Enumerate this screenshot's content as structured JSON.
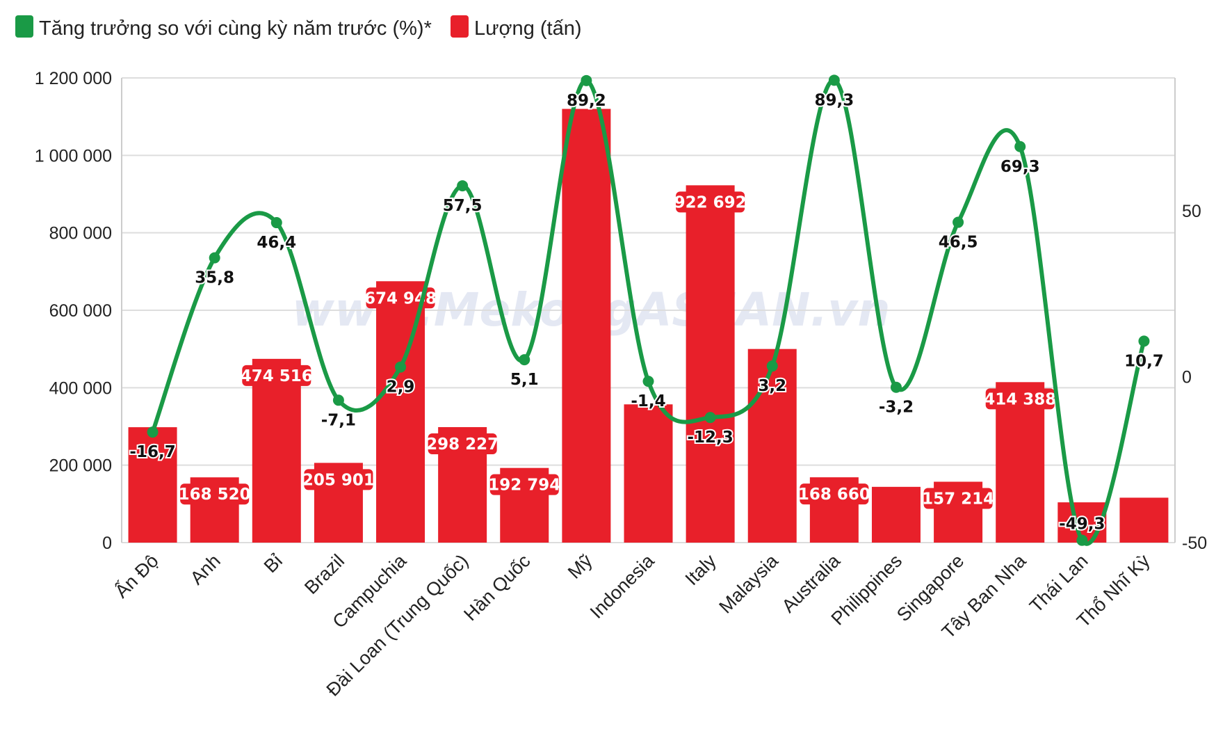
{
  "watermark": "www.MekongASEAN.vn",
  "legend": [
    {
      "label": "Tăng trưởng so với cùng kỳ năm trước (%)*",
      "color": "#1a9a46"
    },
    {
      "label": "Lượng (tấn)",
      "color": "#e8202a"
    }
  ],
  "chart_data": {
    "type": "bar+line",
    "categories": [
      "Ấn Độ",
      "Anh",
      "Bỉ",
      "Brazil",
      "Campuchia",
      "Đài Loan (Trung Quốc)",
      "Hàn Quốc",
      "Mỹ",
      "Indonesia",
      "Italy",
      "Malaysia",
      "Australia",
      "Philippines",
      "Singapore",
      "Tây Ban Nha",
      "Thái Lan",
      "Thổ Nhĩ Kỳ"
    ],
    "series": [
      {
        "name": "Lượng (tấn)",
        "type": "bar",
        "axis": "left",
        "color": "#e8202a",
        "values": [
          298000,
          168520,
          474516,
          205901,
          674948,
          298227,
          192794,
          1120000,
          357000,
          922692,
          500000,
          168660,
          144000,
          157214,
          414388,
          104000,
          116000
        ],
        "labels": [
          "",
          "168 520",
          "474 516",
          "205 901",
          "674 948",
          "298 227",
          "192 794",
          "",
          "",
          "922 692",
          "",
          "168 660",
          "",
          "157 214",
          "414 388",
          "",
          ""
        ]
      },
      {
        "name": "Tăng trưởng so với cùng kỳ năm trước (%)*",
        "type": "line",
        "axis": "right",
        "color": "#1a9a46",
        "values": [
          -16.7,
          35.8,
          46.4,
          -7.1,
          2.9,
          57.5,
          5.1,
          89.2,
          -1.4,
          -12.3,
          3.2,
          89.3,
          -3.2,
          46.5,
          69.3,
          -49.3,
          10.7
        ],
        "labels": [
          "-16,7",
          "35,8",
          "46,4",
          "-7,1",
          "2,9",
          "57,5",
          "5,1",
          "89,2",
          "-1,4",
          "-12,3",
          "3,2",
          "89,3",
          "-3,2",
          "46,5",
          "69,3",
          "-49,3",
          "10,7"
        ]
      }
    ],
    "left_axis": {
      "range": [
        0,
        1200000
      ],
      "ticks": [
        0,
        200000,
        400000,
        600000,
        800000,
        1000000,
        1200000
      ],
      "tick_labels": [
        "0",
        "200 000",
        "400 000",
        "600 000",
        "800 000",
        "1 000 000",
        "1 200 000"
      ]
    },
    "right_axis": {
      "range": [
        -50,
        90
      ],
      "ticks": [
        -50,
        0,
        50
      ],
      "tick_labels": [
        "-50",
        "0",
        "50"
      ]
    },
    "grid": true,
    "legend_position": "top-left"
  }
}
